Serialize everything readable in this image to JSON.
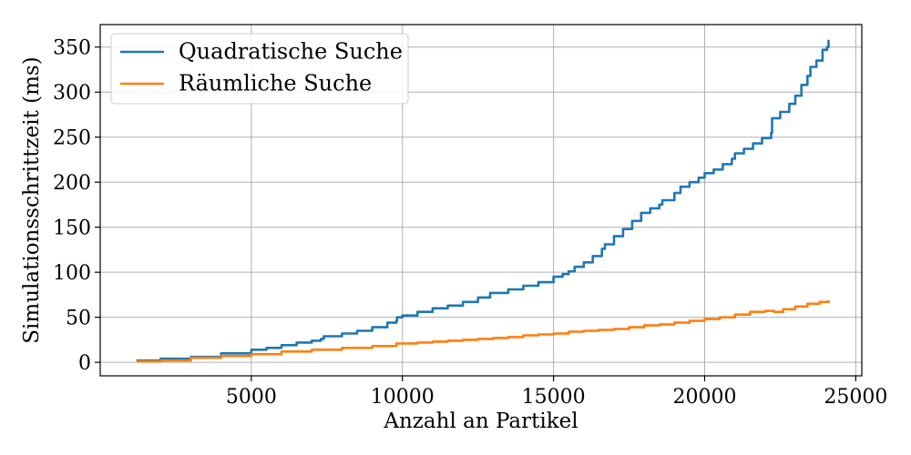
{
  "chart_data": {
    "type": "line",
    "title": "",
    "xlabel": "Anzahl an Partikel",
    "ylabel": "Simulationsschrittzeit (ms)",
    "xlim": [
      0,
      25200
    ],
    "ylim": [
      -15,
      375
    ],
    "xticks": [
      5000,
      10000,
      15000,
      20000,
      25000
    ],
    "xtick_labels": [
      "5000",
      "10000",
      "15000",
      "20000",
      "25000"
    ],
    "yticks": [
      0,
      50,
      100,
      150,
      200,
      250,
      300,
      350
    ],
    "ytick_labels": [
      "0",
      "50",
      "100",
      "150",
      "200",
      "250",
      "300",
      "350"
    ],
    "grid": true,
    "legend_position": "top-left",
    "series": [
      {
        "name": "Quadratische Suche",
        "color": "#1f77b4",
        "points": [
          [
            1200,
            2
          ],
          [
            2000,
            4
          ],
          [
            3000,
            6
          ],
          [
            4000,
            10
          ],
          [
            5000,
            14
          ],
          [
            5500,
            16
          ],
          [
            6000,
            19
          ],
          [
            6500,
            22
          ],
          [
            7000,
            24
          ],
          [
            7300,
            26
          ],
          [
            7400,
            29
          ],
          [
            8000,
            32
          ],
          [
            8500,
            35
          ],
          [
            9000,
            39
          ],
          [
            9500,
            44
          ],
          [
            9800,
            46
          ],
          [
            9820,
            50
          ],
          [
            10000,
            52
          ],
          [
            10500,
            56
          ],
          [
            11000,
            60
          ],
          [
            11500,
            63
          ],
          [
            12000,
            67
          ],
          [
            12500,
            72
          ],
          [
            12900,
            77
          ],
          [
            13500,
            81
          ],
          [
            14000,
            85
          ],
          [
            14500,
            89
          ],
          [
            15000,
            95
          ],
          [
            15300,
            98
          ],
          [
            15500,
            101
          ],
          [
            15700,
            106
          ],
          [
            16000,
            111
          ],
          [
            16300,
            118
          ],
          [
            16600,
            126
          ],
          [
            16700,
            131
          ],
          [
            17000,
            140
          ],
          [
            17300,
            148
          ],
          [
            17600,
            157
          ],
          [
            17900,
            166
          ],
          [
            18200,
            171
          ],
          [
            18500,
            175
          ],
          [
            18600,
            180
          ],
          [
            19000,
            188
          ],
          [
            19200,
            195
          ],
          [
            19500,
            200
          ],
          [
            19800,
            205
          ],
          [
            20000,
            210
          ],
          [
            20300,
            214
          ],
          [
            20600,
            220
          ],
          [
            20900,
            226
          ],
          [
            21000,
            232
          ],
          [
            21300,
            237
          ],
          [
            21600,
            243
          ],
          [
            21900,
            249
          ],
          [
            22200,
            255
          ],
          [
            22230,
            271
          ],
          [
            22500,
            278
          ],
          [
            22800,
            287
          ],
          [
            23000,
            296
          ],
          [
            23200,
            308
          ],
          [
            23400,
            318
          ],
          [
            23500,
            328
          ],
          [
            23700,
            335
          ],
          [
            23900,
            347
          ],
          [
            24050,
            350
          ],
          [
            24100,
            358
          ]
        ]
      },
      {
        "name": "Räumliche Suche",
        "color": "#ff7f0e",
        "points": [
          [
            1200,
            1
          ],
          [
            2000,
            2
          ],
          [
            3000,
            5
          ],
          [
            4000,
            7
          ],
          [
            5000,
            9
          ],
          [
            6000,
            12
          ],
          [
            7000,
            14
          ],
          [
            8000,
            16
          ],
          [
            9000,
            18
          ],
          [
            9800,
            21
          ],
          [
            10500,
            22
          ],
          [
            11000,
            23
          ],
          [
            11500,
            24
          ],
          [
            12000,
            25
          ],
          [
            12500,
            26
          ],
          [
            13000,
            27
          ],
          [
            13500,
            28
          ],
          [
            14000,
            30
          ],
          [
            14500,
            31
          ],
          [
            15000,
            32
          ],
          [
            15500,
            34
          ],
          [
            16000,
            35
          ],
          [
            16500,
            36
          ],
          [
            17000,
            37
          ],
          [
            17500,
            39
          ],
          [
            18000,
            41
          ],
          [
            18500,
            42
          ],
          [
            19000,
            44
          ],
          [
            19500,
            46
          ],
          [
            20000,
            48
          ],
          [
            20500,
            50
          ],
          [
            21000,
            53
          ],
          [
            21500,
            56
          ],
          [
            22000,
            57
          ],
          [
            22300,
            56
          ],
          [
            22600,
            59
          ],
          [
            23000,
            62
          ],
          [
            23400,
            65
          ],
          [
            23800,
            67
          ],
          [
            24100,
            69
          ]
        ]
      }
    ]
  }
}
